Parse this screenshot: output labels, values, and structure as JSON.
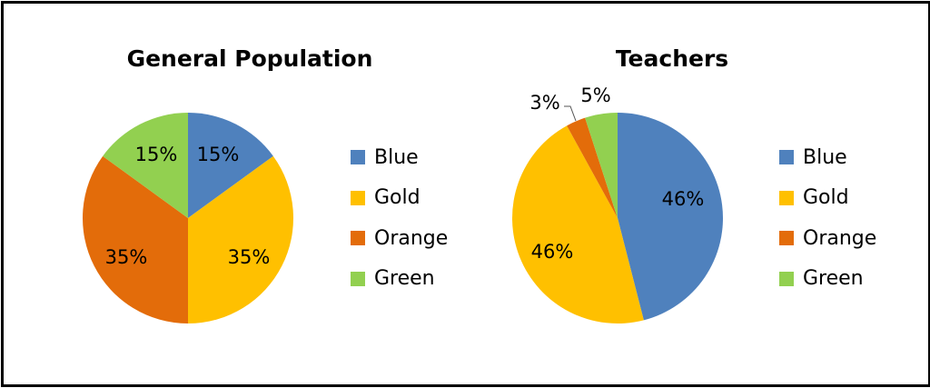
{
  "chart_data": [
    {
      "type": "pie",
      "title": "General Population",
      "categories": [
        "Blue",
        "Gold",
        "Orange",
        "Green"
      ],
      "values": [
        15,
        35,
        35,
        15
      ],
      "labels": [
        "15%",
        "35%",
        "35%",
        "15%"
      ],
      "colors": [
        "#4F81BD",
        "#FFC000",
        "#E36C0A",
        "#92D050"
      ],
      "legend_position": "right"
    },
    {
      "type": "pie",
      "title": "Teachers",
      "categories": [
        "Blue",
        "Gold",
        "Orange",
        "Green"
      ],
      "values": [
        46,
        46,
        3,
        5
      ],
      "labels": [
        "46%",
        "46%",
        "3%",
        "5%"
      ],
      "colors": [
        "#4F81BD",
        "#FFC000",
        "#E36C0A",
        "#92D050"
      ],
      "legend_position": "right"
    }
  ],
  "charts": {
    "left": {
      "title": "General Population",
      "legend": [
        "Blue",
        "Gold",
        "Orange",
        "Green"
      ]
    },
    "right": {
      "title": "Teachers",
      "legend": [
        "Blue",
        "Gold",
        "Orange",
        "Green"
      ]
    }
  }
}
